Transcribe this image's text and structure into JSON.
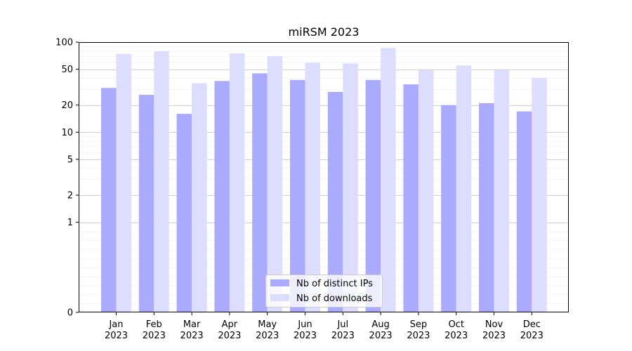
{
  "chart_data": {
    "type": "bar",
    "title": "miRSM 2023",
    "xlabel": "",
    "ylabel": "",
    "y_scale": "symlog",
    "ylim": [
      0,
      100
    ],
    "y_ticks": [
      0,
      1,
      2,
      5,
      10,
      20,
      50,
      100
    ],
    "y_tick_labels": [
      "0",
      "1",
      "2",
      "5",
      "10",
      "20",
      "50",
      "100"
    ],
    "categories": [
      [
        "Jan",
        "2023"
      ],
      [
        "Feb",
        "2023"
      ],
      [
        "Mar",
        "2023"
      ],
      [
        "Apr",
        "2023"
      ],
      [
        "May",
        "2023"
      ],
      [
        "Jun",
        "2023"
      ],
      [
        "Jul",
        "2023"
      ],
      [
        "Aug",
        "2023"
      ],
      [
        "Sep",
        "2023"
      ],
      [
        "Oct",
        "2023"
      ],
      [
        "Nov",
        "2023"
      ],
      [
        "Dec",
        "2023"
      ]
    ],
    "series": [
      {
        "name": "Nb of distinct IPs",
        "color": "#aaaaff",
        "values": [
          31,
          26,
          16,
          37,
          45,
          38,
          28,
          38,
          34,
          20,
          21,
          17
        ]
      },
      {
        "name": "Nb of downloads",
        "color": "#ddddff",
        "values": [
          74,
          79,
          35,
          75,
          70,
          59,
          58,
          86,
          49,
          55,
          49,
          40
        ]
      }
    ],
    "grid": true,
    "legend_position": "bottom-center"
  }
}
